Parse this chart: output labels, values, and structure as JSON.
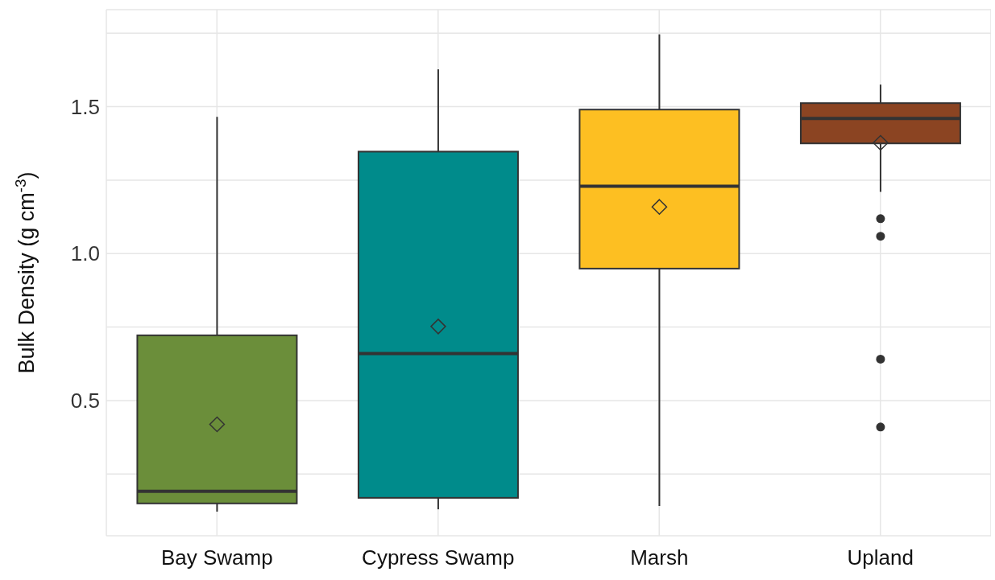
{
  "chart_data": {
    "type": "box",
    "ylabel": "Bulk Density (g cm$^{-3}$)",
    "categories": [
      "Bay Swamp",
      "Cypress Swamp",
      "Marsh",
      "Upland"
    ],
    "colors": [
      "#6b8e3a",
      "#008b8b",
      "#fdbf22",
      "#8b4422"
    ],
    "boxes": [
      {
        "low": 0.122,
        "q1": 0.15,
        "median": 0.191,
        "q3": 0.722,
        "high": 1.465,
        "mean": 0.419
      },
      {
        "low": 0.13,
        "q1": 0.169,
        "median": 0.66,
        "q3": 1.347,
        "high": 1.627,
        "mean": 0.752
      },
      {
        "low": 0.141,
        "q1": 0.949,
        "median": 1.229,
        "q3": 1.49,
        "high": 1.746,
        "mean": 1.159
      },
      {
        "low": 1.21,
        "q1": 1.375,
        "median": 1.46,
        "q3": 1.512,
        "high": 1.575,
        "mean": 1.377,
        "outliers": [
          1.119,
          1.059,
          0.641,
          0.41
        ]
      }
    ],
    "ylim": [
      0.04,
      1.83
    ],
    "yticks": [
      {
        "value": 0.25,
        "label": null
      },
      0.5,
      {
        "value": 0.75,
        "label": null
      },
      {
        "value": 1,
        "label": "1.0"
      },
      {
        "value": 1.25,
        "label": null
      },
      1.5,
      {
        "value": 1.75,
        "label": null
      }
    ],
    "grid": true
  }
}
